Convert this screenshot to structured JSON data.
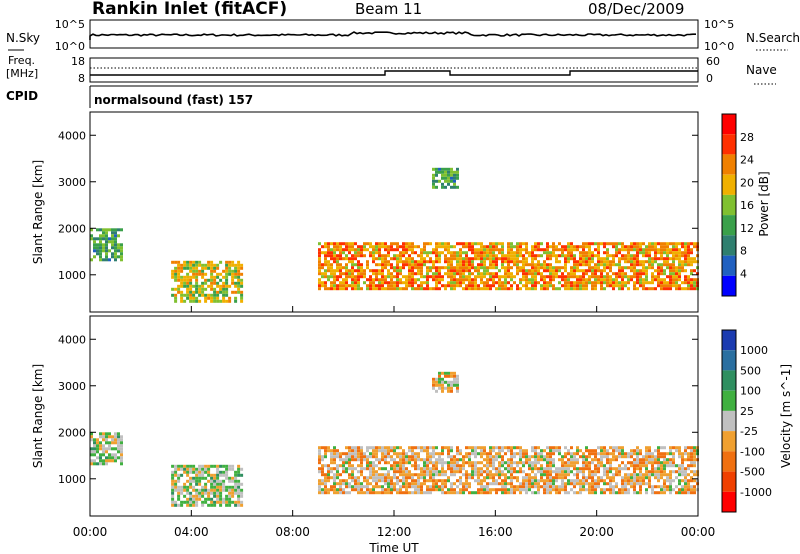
{
  "header": {
    "station": "Rankin Inlet (fitACF)",
    "beam": "Beam 11",
    "date": "08/Dec/2009"
  },
  "top_panel": {
    "left_label": "N.Sky",
    "left_ticks": [
      "10^5",
      "10^0"
    ],
    "right_label": "N.Search",
    "right_ticks": [
      "10^5",
      "10^0"
    ]
  },
  "freq_panel": {
    "label_line1": "Freq.",
    "label_line2": "[MHz]",
    "left_ticks": [
      "18",
      "8"
    ],
    "right_label": "Nave",
    "right_ticks": [
      "60",
      "0"
    ]
  },
  "cpid": {
    "label": "CPID",
    "value": "normalsound (fast) 157"
  },
  "colors": {
    "power_scale": [
      "#0000ff",
      "#2060c0",
      "#2f7f6f",
      "#3aa04a",
      "#80c030",
      "#f0b000",
      "#f08000",
      "#ff3000",
      "#ff0000"
    ],
    "velocity_scale": [
      "#1b3bb0",
      "#2a6fa0",
      "#2f8f60",
      "#40b040",
      "#c0c0c0",
      "#f0a030",
      "#f07010",
      "#f04000",
      "#ff0000"
    ]
  },
  "chart_data": [
    {
      "type": "heatmap",
      "name": "power",
      "ylabel": "Slant Range [km]",
      "y_ticks": [
        "1000",
        "2000",
        "3000",
        "4000"
      ],
      "ylim": [
        200,
        4500
      ],
      "colorbar_label": "Power [dB]",
      "colorbar_ticks": [
        "4",
        "8",
        "12",
        "16",
        "20",
        "24",
        "28"
      ],
      "regions": [
        {
          "t0": 0.0,
          "t1": 1.3,
          "r0": 1300,
          "r1": 2000,
          "value": 12
        },
        {
          "t0": 3.2,
          "t1": 6.0,
          "r0": 400,
          "r1": 1300,
          "value": 18
        },
        {
          "t0": 9.0,
          "t1": 24.0,
          "r0": 700,
          "r1": 1700,
          "value": 22
        },
        {
          "t0": 13.5,
          "t1": 14.5,
          "r0": 2900,
          "r1": 3300,
          "value": 12
        }
      ]
    },
    {
      "type": "heatmap",
      "name": "velocity",
      "ylabel": "Slant Range [km]",
      "y_ticks": [
        "1000",
        "2000",
        "3000",
        "4000"
      ],
      "ylim": [
        200,
        4500
      ],
      "colorbar_label": "Velocity [m s^-1]",
      "colorbar_ticks": [
        "1000",
        "500",
        "100",
        "25",
        "-25",
        "-100",
        "-500",
        "-1000"
      ],
      "regions": [
        {
          "t0": 0.0,
          "t1": 1.3,
          "r0": 1300,
          "r1": 2000,
          "value": 100
        },
        {
          "t0": 3.2,
          "t1": 6.0,
          "r0": 400,
          "r1": 1300,
          "value": 50
        },
        {
          "t0": 9.0,
          "t1": 24.0,
          "r0": 700,
          "r1": 1700,
          "value": -200
        },
        {
          "t0": 13.5,
          "t1": 14.5,
          "r0": 2900,
          "r1": 3300,
          "value": -100
        }
      ]
    }
  ],
  "x_axis": {
    "label": "Time UT",
    "ticks": [
      "00:00",
      "04:00",
      "08:00",
      "12:00",
      "16:00",
      "20:00",
      "00:00"
    ],
    "xlim": [
      0,
      24
    ]
  }
}
